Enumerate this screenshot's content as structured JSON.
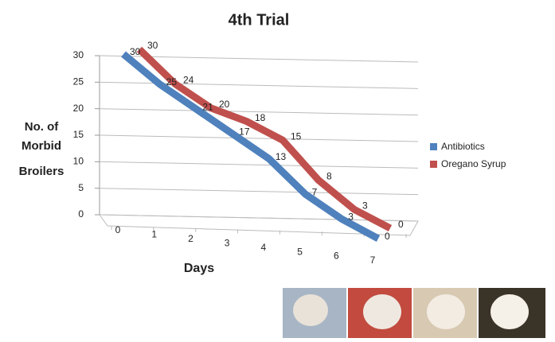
{
  "chart_data": {
    "type": "line",
    "title": "4th Trial",
    "ylabel": [
      "No. of",
      "Morbid",
      "Broilers"
    ],
    "xlabel": "Days",
    "x": [
      0,
      1,
      2,
      3,
      4,
      5,
      6,
      7
    ],
    "xticks": [
      0,
      1,
      2,
      3,
      4,
      5,
      6,
      7
    ],
    "ylim": [
      0,
      30
    ],
    "yticks": [
      0,
      5,
      10,
      15,
      20,
      25,
      30
    ],
    "grid": true,
    "series": [
      {
        "name": "Antibiotics",
        "color": "#4f81bd",
        "values": [
          30,
          25,
          21,
          17,
          13,
          7,
          3,
          0
        ]
      },
      {
        "name": "Oregano Syrup",
        "color": "#c0504d",
        "values": [
          30,
          24,
          20,
          18,
          15,
          8,
          3,
          0
        ]
      }
    ]
  }
}
